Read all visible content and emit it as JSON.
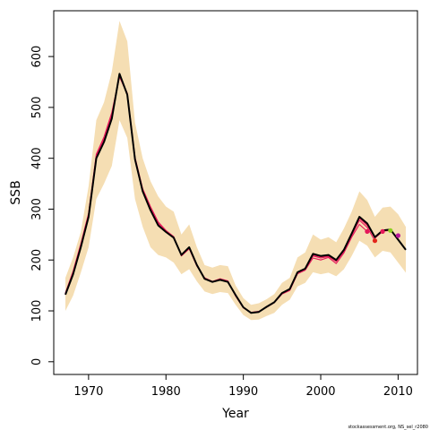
{
  "chart_data": {
    "type": "line",
    "xlabel": "Year",
    "ylabel": "SSB",
    "xlim": [
      1965.5,
      2012.5
    ],
    "ylim": [
      -25,
      690
    ],
    "x_ticks": [
      1970,
      1980,
      1990,
      2000,
      2010
    ],
    "y_ticks": [
      0,
      100,
      200,
      300,
      400,
      500,
      600
    ],
    "grid": false,
    "legend": "none",
    "footer": "stockassessment.org, NS_sel_r2080",
    "colors": {
      "band": "#f5deb3",
      "main_line": "#000000",
      "retro_line": "#e5195a",
      "axis": "#000000"
    },
    "confidence_band": {
      "x": [
        1967,
        1968,
        1969,
        1970,
        1971,
        1972,
        1973,
        1974,
        1975,
        1976,
        1977,
        1978,
        1979,
        1980,
        1981,
        1982,
        1983,
        1984,
        1985,
        1986,
        1987,
        1988,
        1989,
        1990,
        1991,
        1992,
        1993,
        1994,
        1995,
        1996,
        1997,
        1998,
        1999,
        2000,
        2001,
        2002,
        2003,
        2004,
        2005,
        2006,
        2007,
        2008,
        2009,
        2010,
        2011
      ],
      "lower": [
        100,
        130,
        175,
        225,
        320,
        350,
        385,
        475,
        440,
        320,
        265,
        225,
        210,
        205,
        195,
        172,
        182,
        158,
        138,
        133,
        137,
        135,
        112,
        92,
        82,
        83,
        90,
        96,
        112,
        122,
        148,
        155,
        176,
        172,
        175,
        168,
        182,
        208,
        238,
        228,
        205,
        218,
        215,
        195,
        175
      ],
      "upper": [
        165,
        205,
        255,
        345,
        475,
        510,
        570,
        670,
        630,
        470,
        400,
        355,
        325,
        305,
        295,
        250,
        270,
        225,
        190,
        185,
        190,
        188,
        150,
        125,
        112,
        115,
        123,
        133,
        155,
        165,
        205,
        215,
        250,
        240,
        245,
        235,
        262,
        295,
        335,
        318,
        285,
        303,
        305,
        290,
        265
      ]
    },
    "series": [
      {
        "x": [
          1967,
          1968,
          1969,
          1970,
          1971,
          1972,
          1973,
          1974,
          1975,
          1976,
          1977,
          1978,
          1979,
          1980,
          1981,
          1982,
          1983,
          1984,
          1985,
          1986,
          1987,
          1988,
          1989,
          1990,
          1991,
          1992,
          1993,
          1994,
          1995,
          1996,
          1997,
          1998,
          1999,
          2000,
          2001,
          2002,
          2003,
          2004,
          2005,
          2006,
          2007,
          2008,
          2009,
          2010,
          2011
        ],
        "values": [
          132,
          172,
          225,
          285,
          400,
          432,
          478,
          566,
          525,
          398,
          335,
          298,
          268,
          255,
          244,
          210,
          225,
          190,
          163,
          157,
          161,
          157,
          131,
          107,
          96,
          98,
          108,
          117,
          135,
          143,
          176,
          183,
          212,
          208,
          210,
          200,
          220,
          252,
          285,
          272,
          245,
          258,
          260,
          240,
          220
        ]
      },
      {
        "x": [
          1967,
          1968,
          1969,
          1970,
          1971,
          1972,
          1973,
          1974,
          1975,
          1976,
          1977,
          1978,
          1979,
          1980,
          1981,
          1982,
          1983,
          1984,
          1985,
          1986,
          1987,
          1988,
          1989,
          1990,
          1991,
          1992,
          1993,
          1994,
          1995,
          1996,
          1997,
          1998,
          1999,
          2000,
          2001,
          2002,
          2003,
          2004,
          2005,
          2006
        ],
        "values": [
          135,
          178,
          232,
          292,
          408,
          442,
          490,
          562,
          528,
          402,
          340,
          305,
          275,
          258,
          246,
          208,
          222,
          188,
          165,
          158,
          163,
          159,
          129,
          106,
          97,
          99,
          107,
          116,
          133,
          140,
          173,
          180,
          204,
          200,
          205,
          193,
          214,
          245,
          270,
          256
        ]
      },
      {
        "x": [
          1967,
          1968,
          1969,
          1970,
          1971,
          1972,
          1973,
          1974,
          1975,
          1976,
          1977,
          1978,
          1979,
          1980,
          1981,
          1982,
          1983,
          1984,
          1985,
          1986,
          1987,
          1988,
          1989,
          1990,
          1991,
          1992,
          1993,
          1994,
          1995,
          1996,
          1997,
          1998,
          1999,
          2000,
          2001,
          2002,
          2003,
          2004,
          2005,
          2006,
          2007
        ],
        "values": [
          134,
          176,
          230,
          290,
          405,
          440,
          485,
          560,
          526,
          400,
          338,
          302,
          272,
          256,
          245,
          209,
          224,
          189,
          164,
          157,
          162,
          158,
          130,
          106,
          96,
          98,
          108,
          117,
          134,
          142,
          175,
          182,
          208,
          204,
          207,
          197,
          217,
          248,
          278,
          264,
          238
        ]
      },
      {
        "x": [
          1967,
          1968,
          1969,
          1970,
          1971,
          1972,
          1973,
          1974,
          1975,
          1976,
          1977,
          1978,
          1979,
          1980,
          1981,
          1982,
          1983,
          1984,
          1985,
          1986,
          1987,
          1988,
          1989,
          1990,
          1991,
          1992,
          1993,
          1994,
          1995,
          1996,
          1997,
          1998,
          1999,
          2000,
          2001,
          2002,
          2003,
          2004,
          2005,
          2006,
          2007,
          2008
        ],
        "values": [
          133,
          174,
          228,
          288,
          402,
          436,
          482,
          564,
          526,
          399,
          336,
          300,
          270,
          255,
          244,
          210,
          224,
          190,
          164,
          157,
          162,
          158,
          130,
          107,
          96,
          98,
          108,
          117,
          134,
          142,
          176,
          182,
          210,
          206,
          208,
          198,
          218,
          250,
          282,
          268,
          243,
          256
        ]
      },
      {
        "x": [
          1967,
          1968,
          1969,
          1970,
          1971,
          1972,
          1973,
          1974,
          1975,
          1976,
          1977,
          1978,
          1979,
          1980,
          1981,
          1982,
          1983,
          1984,
          1985,
          1986,
          1987,
          1988,
          1989,
          1990,
          1991,
          1992,
          1993,
          1994,
          1995,
          1996,
          1997,
          1998,
          1999,
          2000,
          2001,
          2002,
          2003,
          2004,
          2005,
          2006,
          2007,
          2008,
          2009
        ],
        "values": [
          132,
          173,
          226,
          286,
          401,
          434,
          480,
          565,
          525,
          398,
          335,
          299,
          269,
          255,
          244,
          210,
          225,
          190,
          163,
          157,
          161,
          157,
          131,
          107,
          96,
          98,
          108,
          117,
          135,
          143,
          176,
          183,
          211,
          207,
          209,
          199,
          219,
          251,
          284,
          270,
          244,
          257,
          258
        ]
      }
    ],
    "endpoint_markers": [
      {
        "x": 2006,
        "y": 256,
        "color": "#e5195a"
      },
      {
        "x": 2007,
        "y": 238,
        "color": "#e3261c"
      },
      {
        "x": 2008,
        "y": 256,
        "color": "#e5195a"
      },
      {
        "x": 2009,
        "y": 258,
        "color": "#8cd020"
      },
      {
        "x": 2010,
        "y": 248,
        "color": "#b8199a"
      }
    ]
  }
}
